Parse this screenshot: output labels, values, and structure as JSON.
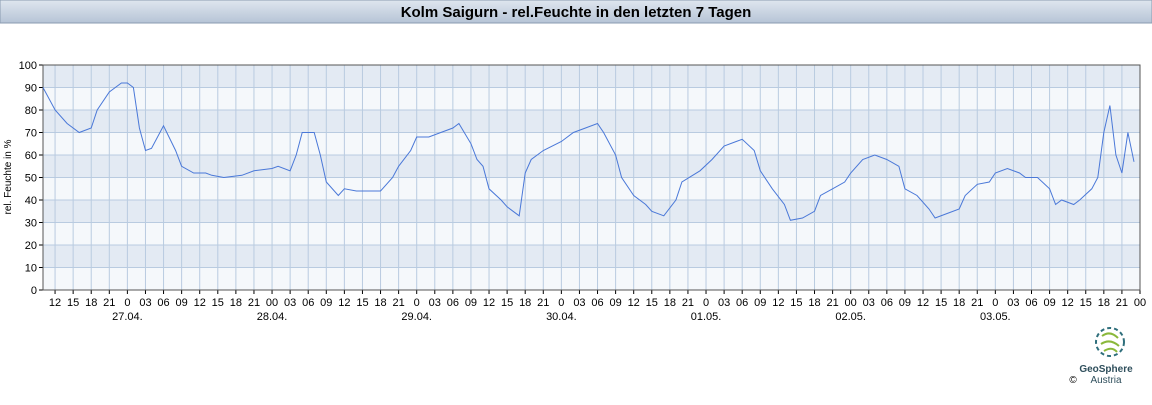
{
  "chart_data": {
    "type": "line",
    "title": "Kolm Saigurn - rel.Feuchte in den letzten 7 Tagen",
    "y_label": "rel. Feuchte in %",
    "logo": {
      "name": "GeoSphere",
      "sub": "Austria",
      "copyright": "©"
    },
    "xlim": [
      -14,
      168
    ],
    "ylim": [
      0,
      100
    ],
    "yticks": [
      0,
      10,
      20,
      30,
      40,
      50,
      60,
      70,
      80,
      90,
      100
    ],
    "grid": true,
    "xticks": [
      {
        "value": -12,
        "label": "12"
      },
      {
        "value": -9,
        "label": "15"
      },
      {
        "value": -6,
        "label": "18"
      },
      {
        "value": -3,
        "label": "21"
      },
      {
        "value": 0,
        "label": "0"
      },
      {
        "value": 3,
        "label": "03"
      },
      {
        "value": 6,
        "label": "06"
      },
      {
        "value": 9,
        "label": "09"
      },
      {
        "value": 12,
        "label": "12"
      },
      {
        "value": 15,
        "label": "15"
      },
      {
        "value": 18,
        "label": "18"
      },
      {
        "value": 21,
        "label": "21"
      },
      {
        "value": 24,
        "label": "00"
      },
      {
        "value": 27,
        "label": "03"
      },
      {
        "value": 30,
        "label": "06"
      },
      {
        "value": 33,
        "label": "09"
      },
      {
        "value": 36,
        "label": "12"
      },
      {
        "value": 39,
        "label": "15"
      },
      {
        "value": 42,
        "label": "18"
      },
      {
        "value": 45,
        "label": "21"
      },
      {
        "value": 48,
        "label": "0"
      },
      {
        "value": 51,
        "label": "03"
      },
      {
        "value": 54,
        "label": "06"
      },
      {
        "value": 57,
        "label": "09"
      },
      {
        "value": 60,
        "label": "12"
      },
      {
        "value": 63,
        "label": "15"
      },
      {
        "value": 66,
        "label": "18"
      },
      {
        "value": 69,
        "label": "21"
      },
      {
        "value": 72,
        "label": "0"
      },
      {
        "value": 75,
        "label": "03"
      },
      {
        "value": 78,
        "label": "06"
      },
      {
        "value": 81,
        "label": "09"
      },
      {
        "value": 84,
        "label": "12"
      },
      {
        "value": 87,
        "label": "15"
      },
      {
        "value": 90,
        "label": "18"
      },
      {
        "value": 93,
        "label": "21"
      },
      {
        "value": 96,
        "label": "0"
      },
      {
        "value": 99,
        "label": "03"
      },
      {
        "value": 102,
        "label": "06"
      },
      {
        "value": 105,
        "label": "09"
      },
      {
        "value": 108,
        "label": "12"
      },
      {
        "value": 111,
        "label": "15"
      },
      {
        "value": 114,
        "label": "18"
      },
      {
        "value": 117,
        "label": "21"
      },
      {
        "value": 120,
        "label": "00"
      },
      {
        "value": 123,
        "label": "03"
      },
      {
        "value": 126,
        "label": "06"
      },
      {
        "value": 129,
        "label": "09"
      },
      {
        "value": 132,
        "label": "12"
      },
      {
        "value": 135,
        "label": "15"
      },
      {
        "value": 138,
        "label": "18"
      },
      {
        "value": 141,
        "label": "21"
      },
      {
        "value": 144,
        "label": "0"
      },
      {
        "value": 147,
        "label": "03"
      },
      {
        "value": 150,
        "label": "06"
      },
      {
        "value": 153,
        "label": "09"
      },
      {
        "value": 156,
        "label": "12"
      },
      {
        "value": 159,
        "label": "15"
      },
      {
        "value": 162,
        "label": "18"
      },
      {
        "value": 165,
        "label": "21"
      },
      {
        "value": 168,
        "label": "00"
      }
    ],
    "date_labels": [
      {
        "value": 0,
        "label": "27.04."
      },
      {
        "value": 24,
        "label": "28.04."
      },
      {
        "value": 48,
        "label": "29.04."
      },
      {
        "value": 72,
        "label": "30.04."
      },
      {
        "value": 96,
        "label": "01.05."
      },
      {
        "value": 120,
        "label": "02.05."
      },
      {
        "value": 144,
        "label": "03.05."
      }
    ],
    "series": [
      {
        "name": "rel. Feuchte",
        "color": "#4a78d8",
        "x": [
          -14,
          -12,
          -10,
          -8,
          -6,
          -5,
          -3,
          -1,
          0,
          1,
          2,
          3,
          4,
          6,
          8,
          9,
          11,
          13,
          14,
          16,
          19,
          21,
          24,
          25,
          27,
          28,
          29,
          31,
          32,
          33,
          35,
          36,
          38,
          42,
          44,
          45,
          47,
          48,
          50,
          52,
          54,
          55,
          57,
          58,
          59,
          60,
          62,
          63,
          64,
          65,
          66,
          67,
          69,
          72,
          74,
          76,
          78,
          79,
          81,
          82,
          84,
          86,
          87,
          89,
          91,
          92,
          95,
          97,
          99,
          101,
          102,
          104,
          105,
          107,
          109,
          110,
          112,
          114,
          115,
          117,
          119,
          120,
          122,
          124,
          126,
          128,
          129,
          131,
          133,
          134,
          136,
          138,
          139,
          141,
          143,
          144,
          146,
          148,
          149,
          151,
          153,
          154,
          155,
          157,
          158,
          160,
          161,
          162,
          163,
          164,
          165,
          166,
          167
        ],
        "values": [
          90,
          80,
          74,
          70,
          72,
          80,
          88,
          92,
          92,
          90,
          72,
          62,
          63,
          73,
          62,
          55,
          52,
          52,
          51,
          50,
          51,
          53,
          54,
          55,
          53,
          60,
          70,
          70,
          60,
          48,
          42,
          45,
          44,
          44,
          50,
          55,
          62,
          68,
          68,
          70,
          72,
          74,
          65,
          58,
          55,
          45,
          40,
          37,
          35,
          33,
          52,
          58,
          62,
          66,
          70,
          72,
          74,
          70,
          60,
          50,
          42,
          38,
          35,
          33,
          40,
          48,
          53,
          58,
          64,
          66,
          67,
          62,
          53,
          45,
          38,
          31,
          32,
          35,
          42,
          45,
          48,
          52,
          58,
          60,
          58,
          55,
          45,
          42,
          36,
          32,
          34,
          36,
          42,
          47,
          48,
          52,
          54,
          52,
          50,
          50,
          45,
          38,
          40,
          38,
          40,
          45,
          50,
          70,
          82,
          60,
          52,
          70,
          57
        ]
      }
    ]
  }
}
